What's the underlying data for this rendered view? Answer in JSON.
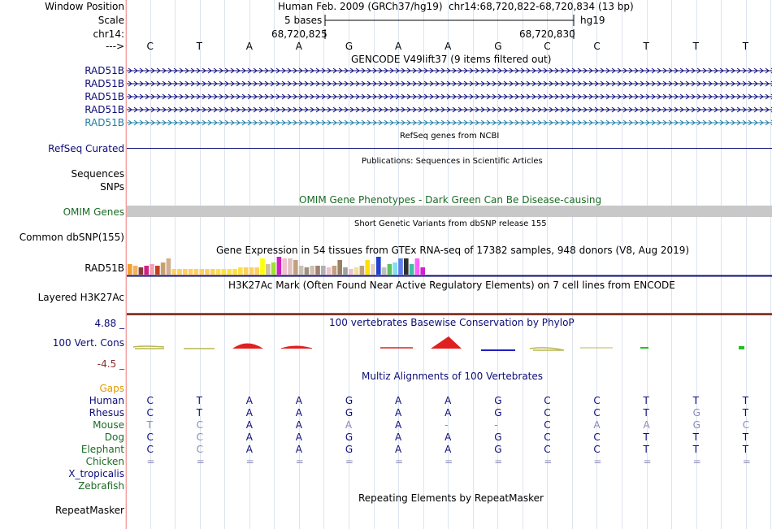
{
  "header": {
    "window_position_label": "Window Position",
    "scale_label": "Scale",
    "chrom_label": "chr14:",
    "arrow_label": "--->",
    "assembly": "Human Feb. 2009 (GRCh37/hg19)",
    "position": "chr14:68,720,822-68,720,834 (13 bp)",
    "scale_text": "5 bases",
    "db": "hg19",
    "coord_start": "68,720,825",
    "coord_end": "68,720,830"
  },
  "bases": [
    "C",
    "T",
    "A",
    "A",
    "G",
    "A",
    "A",
    "G",
    "C",
    "C",
    "T",
    "T",
    "T"
  ],
  "tracks": {
    "gencode": {
      "title": "GENCODE V49lift37 (9 items filtered out)",
      "items": [
        "RAD51B",
        "RAD51B",
        "RAD51B",
        "RAD51B",
        "RAD51B"
      ],
      "item_colors": [
        "#0c0c78",
        "#0c0c78",
        "#0c0c78",
        "#0c0c78",
        "#1f7ca3"
      ]
    },
    "refseq": {
      "title": "RefSeq genes from NCBI",
      "label": "RefSeq Curated"
    },
    "pubs": {
      "title": "Publications: Sequences in Scientific Articles",
      "label1": "Sequences",
      "label2": "SNPs"
    },
    "omim": {
      "title": "OMIM Gene Phenotypes - Dark Green Can Be Disease-causing",
      "label": "OMIM Genes"
    },
    "dbsnp": {
      "title": "Short Genetic Variants from dbSNP release 155",
      "label": "Common dbSNP(155)"
    },
    "gtex": {
      "title": "Gene Expression in 54 tissues from GTEx RNA-seq of 17382 samples, 948 donors (V8, Aug 2019)",
      "label": "RAD51B",
      "values": [
        0.6,
        0.5,
        0.4,
        0.5,
        0.6,
        0.5,
        0.7,
        0.9,
        0.3,
        0.3,
        0.3,
        0.3,
        0.3,
        0.3,
        0.3,
        0.3,
        0.3,
        0.3,
        0.3,
        0.3,
        0.4,
        0.4,
        0.4,
        0.4,
        0.9,
        0.6,
        0.7,
        1.0,
        0.9,
        0.9,
        0.8,
        0.5,
        0.4,
        0.5,
        0.5,
        0.5,
        0.4,
        0.5,
        0.8,
        0.4,
        0.3,
        0.4,
        0.5,
        0.8,
        0.6,
        1.0,
        0.4,
        0.6,
        0.7,
        0.9,
        0.9,
        0.6,
        0.9,
        0.4
      ],
      "colors": [
        "#f0a030",
        "#f2b060",
        "#8a3a3a",
        "#d02080",
        "#f5a0b0",
        "#c04020",
        "#c8a070",
        "#d0b090",
        "#ffd060",
        "#ffd060",
        "#ffd060",
        "#ffd060",
        "#ffd060",
        "#ffd060",
        "#ffd060",
        "#ffd060",
        "#ffe040",
        "#ffe040",
        "#ffe040",
        "#ffe040",
        "#ffe040",
        "#ffd060",
        "#ffd060",
        "#ffd060",
        "#ffff00",
        "#d0c0a0",
        "#a0e030",
        "#d020c0",
        "#f0c0d0",
        "#e0c0c0",
        "#c0a080",
        "#c8c0b8",
        "#a09080",
        "#d0c0b0",
        "#a08070",
        "#b0b0b0",
        "#f0c0d0",
        "#c0a080",
        "#9a8060",
        "#a0a0a0",
        "#f0c0d0",
        "#f0e0a0",
        "#c0a080",
        "#ffe000",
        "#e0d0c0",
        "#2040d0",
        "#c0c0c0",
        "#60c060",
        "#80e0f0",
        "#6080f0",
        "#303030",
        "#40c0a0",
        "#ff60ff",
        "#d020d0"
      ]
    },
    "h3k27ac": {
      "title": "H3K27Ac Mark (Often Found Near Active Regulatory Elements) on 7 cell lines from ENCODE",
      "label": "Layered H3K27Ac"
    },
    "phylop": {
      "title": "100 vertebrates Basewise Conservation by PhyloP",
      "label": "100 Vert. Cons",
      "ymax": "4.88 _",
      "ymin": "-4.5 _"
    },
    "multiz": {
      "title": "Multiz Alignments of 100 Vertebrates",
      "gaps_label": "Gaps",
      "species": [
        {
          "name": "Human",
          "color": "#0c0c78",
          "seq": "CTAAGAAGCCTTT"
        },
        {
          "name": "Rhesus",
          "color": "#0c0c78",
          "seq": "CTAAGAAGCCTGT"
        },
        {
          "name": "Mouse",
          "color": "#1b6b24",
          "seq": "TCAAAA--CAAGC"
        },
        {
          "name": "Dog",
          "color": "#1b6b24",
          "seq": "CCAAGAAGCCTTT"
        },
        {
          "name": "Elephant",
          "color": "#1b6b24",
          "seq": "CCAAGAAGCCTTT"
        },
        {
          "name": "Chicken",
          "color": "#1b6b24",
          "seq": "============="
        },
        {
          "name": "X_tropicalis",
          "color": "#0c0c78",
          "seq": ""
        },
        {
          "name": "Zebrafish",
          "color": "#1b6b24",
          "seq": ""
        }
      ],
      "seq_styles": [
        [
          "d",
          "d",
          "d",
          "d",
          "d",
          "d",
          "d",
          "d",
          "d",
          "d",
          "d",
          "d",
          "d"
        ],
        [
          "d",
          "d",
          "d",
          "d",
          "d",
          "d",
          "d",
          "d",
          "d",
          "d",
          "d",
          "g",
          "d"
        ],
        [
          "g",
          "g",
          "d",
          "d",
          "g",
          "d",
          "g",
          "g",
          "d",
          "g",
          "g",
          "g",
          "g"
        ],
        [
          "d",
          "g",
          "d",
          "d",
          "d",
          "d",
          "d",
          "d",
          "d",
          "d",
          "d",
          "d",
          "d"
        ],
        [
          "d",
          "g",
          "d",
          "d",
          "d",
          "d",
          "d",
          "d",
          "d",
          "d",
          "d",
          "d",
          "d"
        ],
        [
          "g",
          "g",
          "g",
          "g",
          "g",
          "g",
          "g",
          "g",
          "g",
          "g",
          "g",
          "g",
          "g"
        ]
      ]
    },
    "rmsk": {
      "title": "Repeating Elements by RepeatMasker",
      "label": "RepeatMasker"
    }
  },
  "colors": {
    "navy": "#0c0c78",
    "green": "#1b6b24",
    "orange": "#e09a00",
    "maroon": "#8b2a2a",
    "omim_bar": "#c8c8c8",
    "h3k27ac_line": "#c04020",
    "phylop_up": "#e02020",
    "phylop_down_a": "#b8b850",
    "phylop_down_b": "#2020c0"
  }
}
